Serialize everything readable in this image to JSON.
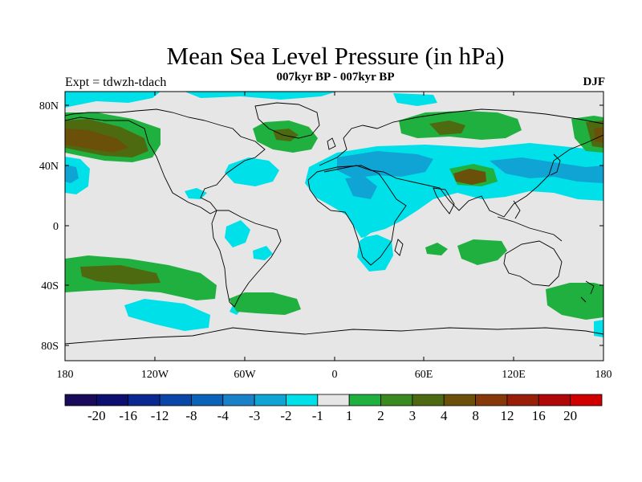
{
  "header": {
    "title": "Mean Sea Level Pressure (in hPa)",
    "subtitle": "007kyr BP - 007kyr BP",
    "left_label": "Expt = tdwzh-tdach",
    "right_label": "DJF"
  },
  "map": {
    "lon_ticks": [
      "180",
      "120W",
      "60W",
      "0",
      "60E",
      "120E",
      "180"
    ],
    "lat_ticks": [
      "80N",
      "40N",
      "0",
      "40S",
      "80S"
    ],
    "land_color": "#e6e6e6",
    "ocean_color": "#e6e6e6"
  },
  "colorbar": {
    "colors": [
      "#1a0a5a",
      "#0d0f70",
      "#0a2890",
      "#0a45a8",
      "#0a63b8",
      "#1a80c8",
      "#10a4d4",
      "#00e0e8",
      "#e6e6e6",
      "#20b040",
      "#3a8a20",
      "#4e6a10",
      "#6a5008",
      "#86380a",
      "#981e0a",
      "#b00808",
      "#d00000"
    ],
    "labels": [
      "-20",
      "-16",
      "-12",
      "-8",
      "-4",
      "-3",
      "-2",
      "-1",
      "1",
      "2",
      "3",
      "4",
      "8",
      "12",
      "16",
      "20"
    ]
  }
}
